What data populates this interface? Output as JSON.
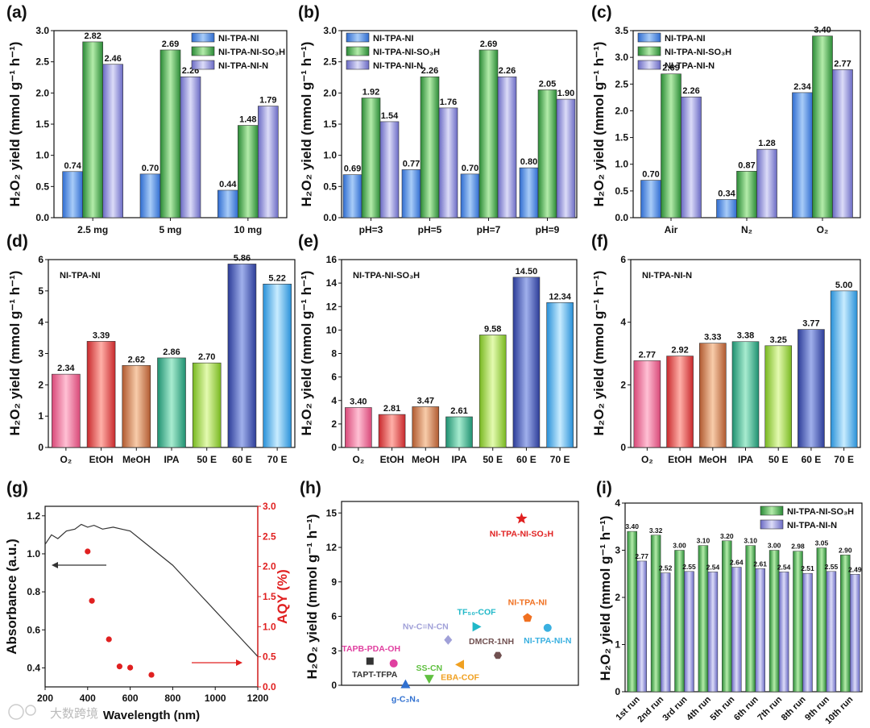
{
  "colors": {
    "blue": "#5b8fe0",
    "green": "#3aa64a",
    "purple": "#8f8fd8",
    "red": "#e02020",
    "text": "#111111"
  },
  "watermark": "大数跨境",
  "chart_data": [
    {
      "id": "a",
      "letter": "(a)",
      "type": "bar",
      "ylabel": "H₂O₂ yield (mmol g⁻¹ h⁻¹)",
      "ylim": [
        0,
        3.0
      ],
      "yticks": [
        "0.0",
        "0.5",
        "1.0",
        "1.5",
        "2.0",
        "2.5",
        "3.0"
      ],
      "categories": [
        "2.5 mg",
        "5 mg",
        "10 mg"
      ],
      "legend": [
        "NI-TPA-NI",
        "NI-TPA-NI-SO₃H",
        "NI-TPA-NI-N"
      ],
      "series": [
        {
          "name": "NI-TPA-NI",
          "values": [
            0.74,
            0.7,
            0.44
          ],
          "labels": [
            "0.74",
            "0.70",
            "0.44"
          ]
        },
        {
          "name": "NI-TPA-NI-SO₃H",
          "values": [
            2.82,
            2.69,
            1.48
          ],
          "labels": [
            "2.82",
            "2.69",
            "1.48"
          ]
        },
        {
          "name": "NI-TPA-NI-N",
          "values": [
            2.46,
            2.26,
            1.79
          ],
          "labels": [
            "2.46",
            "2.26",
            "1.79"
          ]
        }
      ]
    },
    {
      "id": "b",
      "letter": "(b)",
      "type": "bar",
      "ylabel": "H₂O₂ yield (mmol g⁻¹ h⁻¹)",
      "ylim": [
        0,
        3.0
      ],
      "yticks": [
        "0.0",
        "0.5",
        "1.0",
        "1.5",
        "2.0",
        "2.5",
        "3.0"
      ],
      "categories": [
        "pH=3",
        "pH=5",
        "pH=7",
        "pH=9"
      ],
      "legend": [
        "NI-TPA-NI",
        "NI-TPA-NI-SO₃H",
        "NI-TPA-NI-N"
      ],
      "series": [
        {
          "name": "NI-TPA-NI",
          "values": [
            0.69,
            0.77,
            0.7,
            0.8
          ],
          "labels": [
            "0.69",
            "0.77",
            "0.70",
            "0.80"
          ]
        },
        {
          "name": "NI-TPA-NI-SO₃H",
          "values": [
            1.92,
            2.26,
            2.69,
            2.05
          ],
          "labels": [
            "1.92",
            "2.26",
            "2.69",
            "2.05"
          ]
        },
        {
          "name": "NI-TPA-NI-N",
          "values": [
            1.54,
            1.76,
            2.26,
            1.9
          ],
          "labels": [
            "1.54",
            "1.76",
            "2.26",
            "1.90"
          ]
        }
      ]
    },
    {
      "id": "c",
      "letter": "(c)",
      "type": "bar",
      "ylabel": "H₂O₂ yield (mmol g⁻¹ h⁻¹)",
      "ylim": [
        0,
        3.5
      ],
      "yticks": [
        "0.0",
        "0.5",
        "1.0",
        "1.5",
        "2.0",
        "2.5",
        "3.0",
        "3.5"
      ],
      "categories": [
        "Air",
        "N₂",
        "O₂"
      ],
      "legend": [
        "NI-TPA-NI",
        "NI-TPA-NI-SO₃H",
        "NI-TPA-NI-N"
      ],
      "series": [
        {
          "name": "NI-TPA-NI",
          "values": [
            0.7,
            0.34,
            2.34
          ],
          "labels": [
            "0.70",
            "0.34",
            "2.34"
          ]
        },
        {
          "name": "NI-TPA-NI-SO₃H",
          "values": [
            2.69,
            0.87,
            3.4
          ],
          "labels": [
            "2.69",
            "0.87",
            "3.40"
          ]
        },
        {
          "name": "NI-TPA-NI-N",
          "values": [
            2.26,
            1.28,
            2.77
          ],
          "labels": [
            "2.26",
            "1.28",
            "2.77"
          ]
        }
      ]
    },
    {
      "id": "d",
      "letter": "(d)",
      "type": "bar",
      "title": "NI-TPA-NI",
      "ylabel": "H₂O₂ yield (mmol g⁻¹ h⁻¹)",
      "ylim": [
        0,
        6
      ],
      "yticks": [
        "0",
        "1",
        "2",
        "3",
        "4",
        "5",
        "6"
      ],
      "categories": [
        "O₂",
        "EtOH",
        "MeOH",
        "IPA",
        "50 E",
        "60 E",
        "70 E"
      ],
      "values": [
        2.34,
        3.39,
        2.62,
        2.86,
        2.7,
        5.86,
        5.22
      ],
      "labels": [
        "2.34",
        "3.39",
        "2.62",
        "2.86",
        "2.70",
        "5.86",
        "5.22"
      ]
    },
    {
      "id": "e",
      "letter": "(e)",
      "type": "bar",
      "title": "NI-TPA-NI-SO₃H",
      "ylabel": "H₂O₂ yield (mmol g⁻¹ h⁻¹)",
      "ylim": [
        0,
        16
      ],
      "yticks": [
        "0",
        "2",
        "4",
        "6",
        "8",
        "10",
        "12",
        "14",
        "16"
      ],
      "categories": [
        "O₂",
        "EtOH",
        "MeOH",
        "IPA",
        "50 E",
        "60 E",
        "70 E"
      ],
      "values": [
        3.4,
        2.81,
        3.47,
        2.61,
        9.58,
        14.5,
        12.34
      ],
      "labels": [
        "3.40",
        "2.81",
        "3.47",
        "2.61",
        "9.58",
        "14.50",
        "12.34"
      ]
    },
    {
      "id": "f",
      "letter": "(f)",
      "type": "bar",
      "title": "NI-TPA-NI-N",
      "ylabel": "H₂O₂ yield (mmol g⁻¹ h⁻¹)",
      "ylim": [
        0,
        6
      ],
      "yticks": [
        "0",
        "2",
        "4",
        "6"
      ],
      "categories": [
        "O₂",
        "EtOH",
        "MeOH",
        "IPA",
        "50 E",
        "60 E",
        "70 E"
      ],
      "values": [
        2.77,
        2.92,
        3.33,
        3.38,
        3.25,
        3.77,
        5.0
      ],
      "labels": [
        "2.77",
        "2.92",
        "3.33",
        "3.38",
        "3.25",
        "3.77",
        "5.00"
      ]
    },
    {
      "id": "g",
      "letter": "(g)",
      "type": "line",
      "xlabel": "Wavelength (nm)",
      "ylabel": "Absorbance (a.u.)",
      "ylabel_right": "AQY (%)",
      "xlim": [
        200,
        1200
      ],
      "ylim": [
        0.3,
        1.25
      ],
      "ylim_right": [
        0,
        3.0
      ],
      "xticks": [
        "200",
        "400",
        "600",
        "800",
        "1000",
        "1200"
      ],
      "yticks": [
        "0.4",
        "0.6",
        "0.8",
        "1.0",
        "1.2"
      ],
      "yticks_right": [
        "0.0",
        "0.5",
        "1.0",
        "1.5",
        "2.0",
        "2.5",
        "3.0"
      ],
      "absorbance": {
        "x": [
          200,
          230,
          260,
          300,
          340,
          370,
          400,
          430,
          470,
          520,
          560,
          600,
          700,
          800,
          900,
          1000,
          1100,
          1200
        ],
        "y": [
          1.05,
          1.1,
          1.08,
          1.12,
          1.13,
          1.155,
          1.14,
          1.15,
          1.13,
          1.14,
          1.13,
          1.12,
          1.03,
          0.94,
          0.82,
          0.7,
          0.58,
          0.46
        ]
      },
      "aqy": {
        "x": [
          400,
          420,
          500,
          550,
          600,
          700
        ],
        "y": [
          2.25,
          1.43,
          0.79,
          0.34,
          0.32,
          0.2
        ]
      }
    },
    {
      "id": "h",
      "letter": "(h)",
      "type": "scatter",
      "ylabel": "H₂O₂ yield (mmol g⁻¹ h⁻¹)",
      "ylim": [
        0,
        16
      ],
      "yticks": [
        "0",
        "3",
        "6",
        "9",
        "12",
        "15"
      ],
      "points": [
        {
          "name": "NI-TPA-NI-SO₃H",
          "label": "NI-TPA-NI-SO₃H",
          "x": 7.6,
          "y": 14.5,
          "color": "#e02020",
          "marker": "star"
        },
        {
          "name": "NI-TPA-NI",
          "label": "NI-TPA-NI",
          "x": 7.85,
          "y": 5.86,
          "color": "#f07020",
          "marker": "pentagon"
        },
        {
          "name": "NI-TPA-NI-N",
          "label": "NI-TPA-NI-N",
          "x": 8.7,
          "y": 5.0,
          "color": "#3ab0e0",
          "marker": "circle"
        },
        {
          "name": "TF50-COF",
          "label": "TF₅₀-COF",
          "x": 5.7,
          "y": 5.1,
          "color": "#20b8c8",
          "marker": "tri-right"
        },
        {
          "name": "Nv-C≡N-CN",
          "label": "Nv-C≡N-CN",
          "x": 4.5,
          "y": 3.95,
          "color": "#a0a0d8",
          "marker": "diamond"
        },
        {
          "name": "DMCR-1NH",
          "label": "DMCR-1NH",
          "x": 6.6,
          "y": 2.6,
          "color": "#705050",
          "marker": "hexagon"
        },
        {
          "name": "TAPB-PDA-OH",
          "label": "TAPB-PDA-OH",
          "x": 2.2,
          "y": 1.9,
          "color": "#e040a0",
          "marker": "circle"
        },
        {
          "name": "EBA-COF",
          "label": "EBA-COF",
          "x": 5.0,
          "y": 1.8,
          "color": "#f0a020",
          "marker": "tri-left"
        },
        {
          "name": "TAPT-TFPA",
          "label": "TAPT-TFPA",
          "x": 1.2,
          "y": 2.1,
          "color": "#333333",
          "marker": "square"
        },
        {
          "name": "SS-CN",
          "label": "SS-CN",
          "x": 3.7,
          "y": 0.55,
          "color": "#60c040",
          "marker": "tri-down"
        },
        {
          "name": "g-C3N4",
          "label": "g-C₃N₄",
          "x": 2.7,
          "y": 0.1,
          "color": "#3070d0",
          "marker": "tri-up"
        }
      ]
    },
    {
      "id": "i",
      "letter": "(i)",
      "type": "bar",
      "ylabel": "H₂O₂ yield (mmol g⁻¹ h⁻¹)",
      "ylim": [
        0,
        4
      ],
      "yticks": [
        "0",
        "1",
        "2",
        "3",
        "4"
      ],
      "categories": [
        "1st run",
        "2nd run",
        "3rd run",
        "4th run",
        "5th run",
        "6th run",
        "7th run",
        "8th run",
        "9th run",
        "10th run"
      ],
      "legend": [
        "NI-TPA-NI-SO₃H",
        "NI-TPA-NI-N"
      ],
      "series": [
        {
          "name": "NI-TPA-NI-SO₃H",
          "values": [
            3.4,
            3.32,
            3.0,
            3.1,
            3.2,
            3.1,
            3.0,
            2.98,
            3.05,
            2.9
          ],
          "labels": [
            "3.40",
            "3.32",
            "3.00",
            "3.10",
            "3.20",
            "3.10",
            "3.00",
            "2.98",
            "3.05",
            "2.90"
          ]
        },
        {
          "name": "NI-TPA-NI-N",
          "values": [
            2.77,
            2.52,
            2.55,
            2.54,
            2.64,
            2.61,
            2.54,
            2.51,
            2.55,
            2.49
          ],
          "labels": [
            "2.77",
            "2.52",
            "2.55",
            "2.54",
            "2.64",
            "2.61",
            "2.54",
            "2.51",
            "2.55",
            "2.49"
          ]
        }
      ]
    }
  ]
}
